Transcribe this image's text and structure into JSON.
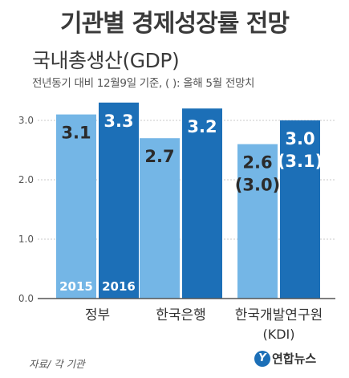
{
  "header": {
    "title": "기관별 경제성장률 전망",
    "subtitle": "국내총생산(GDP)",
    "note": "전년동기 대비 12월9일 기준, (  ): 올해 5월 전망치"
  },
  "footer": {
    "source": "자료/ 각 기관",
    "logo_text": "연합뉴스"
  },
  "colors": {
    "s2015": "#74b6e6",
    "s2016": "#1c6fb7",
    "axis": "#555555",
    "grid": "#c8c8c8"
  },
  "chart_data": {
    "type": "bar",
    "categories": [
      "정부",
      "한국은행",
      "한국개발연구원"
    ],
    "category_sublabels": [
      "",
      "",
      "(KDI)"
    ],
    "series": [
      {
        "name": "2015",
        "values": [
          3.1,
          2.7,
          2.6
        ],
        "labels": [
          "3.1",
          "2.7",
          "2.6"
        ],
        "sublabels": [
          "",
          "",
          "(3.0)"
        ]
      },
      {
        "name": "2016",
        "values": [
          3.3,
          3.2,
          3.0
        ],
        "labels": [
          "3.3",
          "3.2",
          "3.0"
        ],
        "sublabels": [
          "",
          "",
          "(3.1)"
        ]
      }
    ],
    "yticks": [
      "0.0",
      "1.0",
      "2.0",
      "3.0"
    ],
    "ylim": [
      0,
      3.3
    ],
    "grid": true,
    "legend": "inside-bars-bottom"
  }
}
